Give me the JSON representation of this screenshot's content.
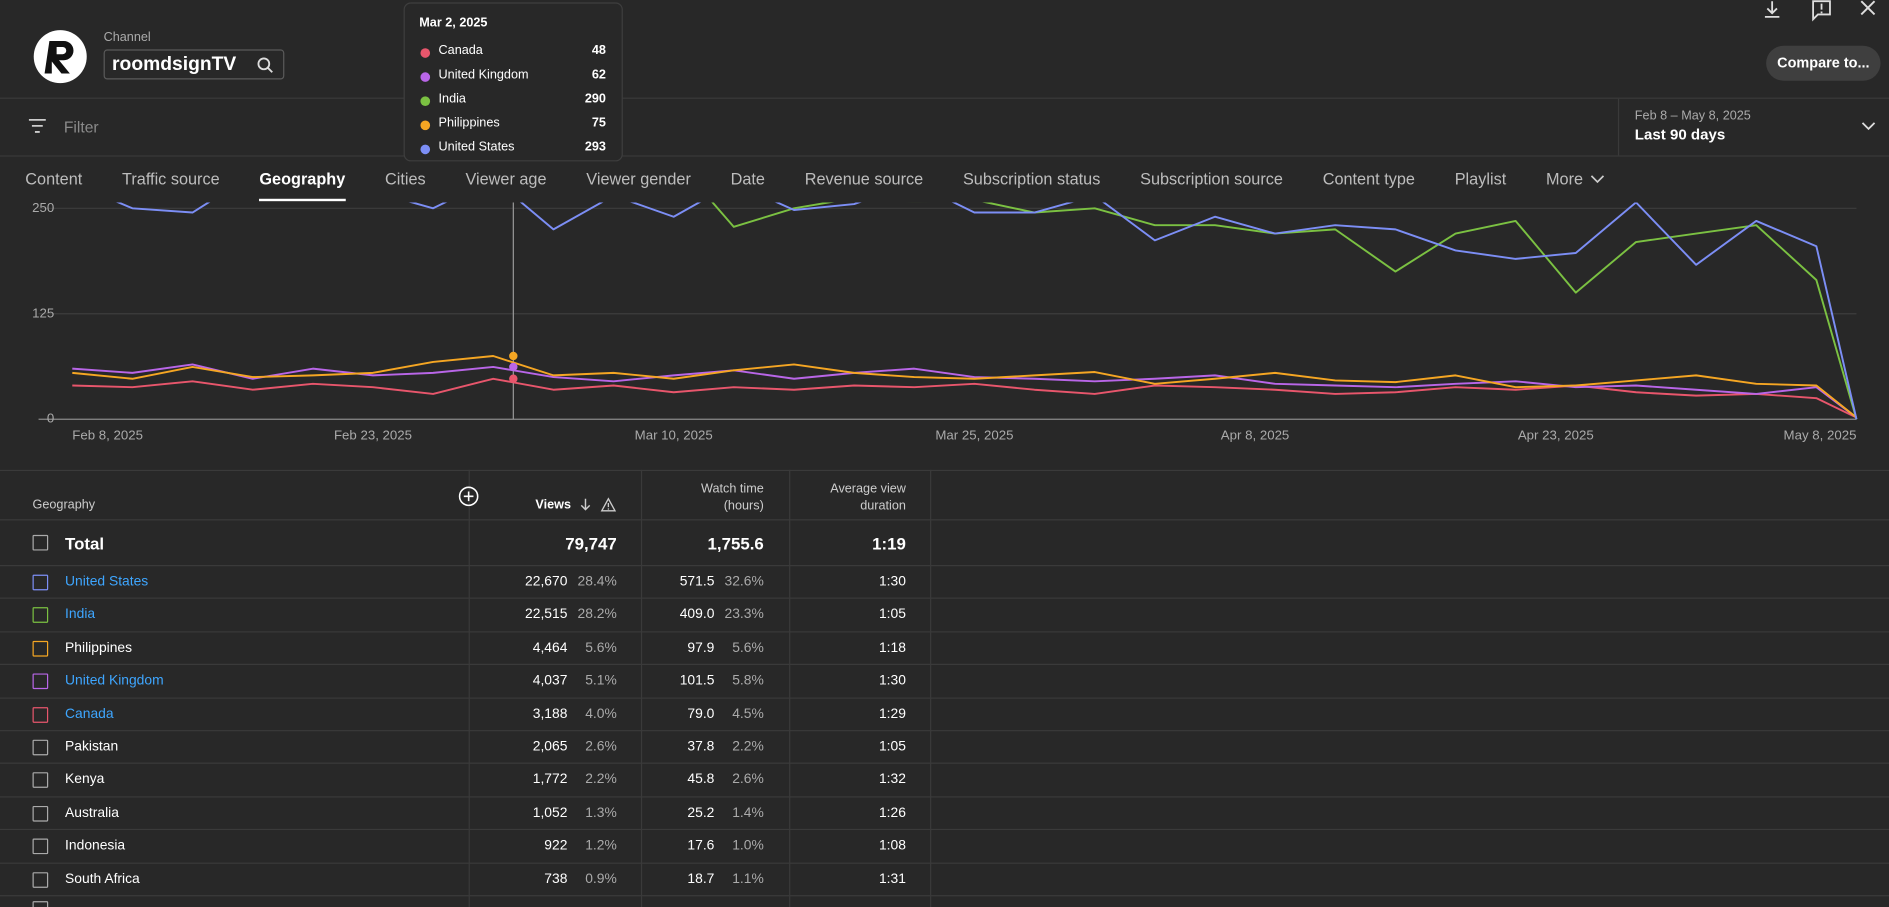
{
  "header": {
    "channel_label": "Channel",
    "channel_name": "roomdsignTV",
    "compare_button": "Compare to..."
  },
  "filter": {
    "placeholder": "Filter",
    "date_range": "Feb 8 – May 8, 2025",
    "date_preset": "Last 90 days"
  },
  "tabs": [
    "Content",
    "Traffic source",
    "Geography",
    "Cities",
    "Viewer age",
    "Viewer gender",
    "Date",
    "Revenue source",
    "Subscription status",
    "Subscription source",
    "Content type",
    "Playlist",
    "More"
  ],
  "active_tab": "Geography",
  "chart_data": {
    "type": "line",
    "x": [
      "Feb 8, 2025",
      "Feb 11, 2025",
      "Feb 14, 2025",
      "Feb 17, 2025",
      "Feb 20, 2025",
      "Feb 23, 2025",
      "Feb 26, 2025",
      "Mar 1, 2025",
      "Mar 4, 2025",
      "Mar 7, 2025",
      "Mar 10, 2025",
      "Mar 13, 2025",
      "Mar 16, 2025",
      "Mar 19, 2025",
      "Mar 22, 2025",
      "Mar 25, 2025",
      "Mar 28, 2025",
      "Mar 31, 2025",
      "Apr 3, 2025",
      "Apr 6, 2025",
      "Apr 9, 2025",
      "Apr 12, 2025",
      "Apr 15, 2025",
      "Apr 18, 2025",
      "Apr 21, 2025",
      "Apr 24, 2025",
      "Apr 27, 2025",
      "Apr 30, 2025",
      "May 3, 2025",
      "May 6, 2025",
      "May 8, 2025"
    ],
    "series": [
      {
        "name": "Canada",
        "color": "#e8566c",
        "values": [
          40,
          38,
          45,
          35,
          42,
          38,
          30,
          48,
          35,
          40,
          32,
          38,
          35,
          40,
          38,
          42,
          35,
          30,
          40,
          38,
          35,
          30,
          32,
          38,
          35,
          40,
          32,
          28,
          30,
          25,
          2
        ]
      },
      {
        "name": "United Kingdom",
        "color": "#b966e8",
        "values": [
          60,
          55,
          65,
          48,
          60,
          52,
          55,
          62,
          50,
          45,
          52,
          58,
          48,
          55,
          60,
          50,
          48,
          45,
          48,
          52,
          42,
          40,
          38,
          42,
          45,
          38,
          40,
          35,
          30,
          38,
          2
        ]
      },
      {
        "name": "India",
        "color": "#7bc142",
        "values": [
          295,
          300,
          310,
          290,
          300,
          285,
          300,
          290,
          295,
          300,
          310,
          228,
          250,
          262,
          258,
          260,
          245,
          250,
          230,
          230,
          220,
          225,
          175,
          220,
          235,
          150,
          210,
          220,
          230,
          165,
          0
        ]
      },
      {
        "name": "Philippines",
        "color": "#f5a623",
        "values": [
          55,
          48,
          62,
          50,
          52,
          55,
          68,
          75,
          52,
          55,
          48,
          58,
          65,
          55,
          50,
          48,
          52,
          56,
          42,
          48,
          55,
          46,
          44,
          52,
          38,
          40,
          46,
          52,
          42,
          40,
          2
        ]
      },
      {
        "name": "United States",
        "color": "#7c8ef5",
        "values": [
          280,
          250,
          245,
          290,
          285,
          270,
          250,
          285,
          225,
          265,
          240,
          280,
          248,
          255,
          280,
          245,
          245,
          265,
          212,
          240,
          220,
          230,
          225,
          200,
          190,
          197,
          257,
          183,
          235,
          205,
          0
        ]
      }
    ],
    "xlim": [
      "Feb 8, 2025",
      "May 8, 2025"
    ],
    "xticks": [
      "Feb 8, 2025",
      "Feb 23, 2025",
      "Mar 10, 2025",
      "Mar 25, 2025",
      "Apr 8, 2025",
      "Apr 23, 2025",
      "May 8, 2025"
    ],
    "ylim": [
      0,
      257
    ],
    "yticks": [
      0,
      125,
      250
    ],
    "grid": true,
    "tooltip": {
      "date": "Mar 2, 2025",
      "values": [
        48,
        62,
        290,
        75,
        293
      ]
    }
  },
  "table": {
    "columns": {
      "geography": "Geography",
      "views": "Views",
      "watch_time": [
        "Watch time",
        "(hours)"
      ],
      "avg_duration": [
        "Average view",
        "duration"
      ]
    },
    "total": {
      "name": "Total",
      "views": "79,747",
      "watch_time": "1,755.6",
      "avg_duration": "1:19"
    },
    "rows": [
      {
        "name": "United States",
        "views": "22,670",
        "views_share": "28.4%",
        "watch_time": "571.5",
        "watch_share": "32.6%",
        "avg_duration": "1:30",
        "color": "#7c8ef5",
        "link": true
      },
      {
        "name": "India",
        "views": "22,515",
        "views_share": "28.2%",
        "watch_time": "409.0",
        "watch_share": "23.3%",
        "avg_duration": "1:05",
        "color": "#7bc142",
        "link": true
      },
      {
        "name": "Philippines",
        "views": "4,464",
        "views_share": "5.6%",
        "watch_time": "97.9",
        "watch_share": "5.6%",
        "avg_duration": "1:18",
        "color": "#f5a623",
        "link": false
      },
      {
        "name": "United Kingdom",
        "views": "4,037",
        "views_share": "5.1%",
        "watch_time": "101.5",
        "watch_share": "5.8%",
        "avg_duration": "1:30",
        "color": "#b966e8",
        "link": true
      },
      {
        "name": "Canada",
        "views": "3,188",
        "views_share": "4.0%",
        "watch_time": "79.0",
        "watch_share": "4.5%",
        "avg_duration": "1:29",
        "color": "#e8566c",
        "link": true
      },
      {
        "name": "Pakistan",
        "views": "2,065",
        "views_share": "2.6%",
        "watch_time": "37.8",
        "watch_share": "2.2%",
        "avg_duration": "1:05"
      },
      {
        "name": "Kenya",
        "views": "1,772",
        "views_share": "2.2%",
        "watch_time": "45.8",
        "watch_share": "2.6%",
        "avg_duration": "1:32"
      },
      {
        "name": "Australia",
        "views": "1,052",
        "views_share": "1.3%",
        "watch_time": "25.2",
        "watch_share": "1.4%",
        "avg_duration": "1:26"
      },
      {
        "name": "Indonesia",
        "views": "922",
        "views_share": "1.2%",
        "watch_time": "17.6",
        "watch_share": "1.0%",
        "avg_duration": "1:08"
      },
      {
        "name": "South Africa",
        "views": "738",
        "views_share": "0.9%",
        "watch_time": "18.7",
        "watch_share": "1.1%",
        "avg_duration": "1:31"
      }
    ]
  }
}
